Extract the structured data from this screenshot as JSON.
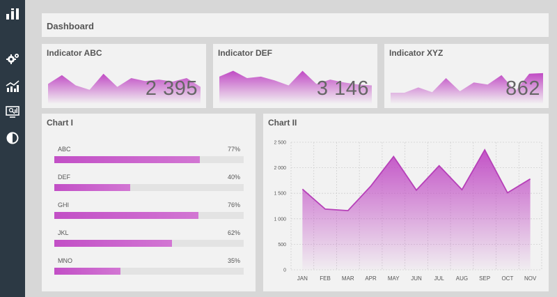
{
  "sidebar": {
    "icons": [
      "bar-chart-logo-icon",
      "gears-icon",
      "trend-chart-icon",
      "presentation-icon",
      "contrast-icon"
    ]
  },
  "header": {
    "title": "Dashboard"
  },
  "kpis": [
    {
      "title": "Indicator ABC",
      "value": "2 395",
      "spark": [
        0.3,
        0.6,
        0.25,
        0.1,
        0.65,
        0.2,
        0.5,
        0.4,
        0.45,
        0.38,
        0.5,
        0.2
      ]
    },
    {
      "title": "Indicator DEF",
      "value": "3 146",
      "spark": [
        0.55,
        0.75,
        0.5,
        0.55,
        0.42,
        0.25,
        0.75,
        0.3,
        0.45,
        0.35,
        0.28,
        0.25
      ]
    },
    {
      "title": "Indicator XYZ",
      "value": "862",
      "spark": [
        0.0,
        0.0,
        0.18,
        0.02,
        0.5,
        0.05,
        0.35,
        0.28,
        0.6,
        0.05,
        0.65,
        0.67
      ]
    }
  ],
  "chart1": {
    "title": "Chart I",
    "chart_data": {
      "type": "bar",
      "categories": [
        "ABC",
        "DEF",
        "GHI",
        "JKL",
        "MNO"
      ],
      "values": [
        77,
        40,
        76,
        62,
        35
      ],
      "labels": [
        "77%",
        "40%",
        "76%",
        "62%",
        "35%"
      ]
    }
  },
  "chart2": {
    "title": "Chart II",
    "chart_data": {
      "type": "area",
      "categories": [
        "JAN",
        "FEB",
        "MAR",
        "APR",
        "MAY",
        "JUN",
        "JUL",
        "AUG",
        "SEP",
        "OCT",
        "NOV"
      ],
      "values": [
        1580,
        1190,
        1160,
        1640,
        2220,
        1560,
        2040,
        1570,
        2350,
        1510,
        1780
      ],
      "ylim": [
        0,
        2500
      ],
      "yticks": [
        "0",
        "500",
        "1 000",
        "1 500",
        "2 000",
        "2 500"
      ],
      "grid": true
    }
  },
  "colors": {
    "accent": "#c04ac4",
    "sidebar": "#2c3944",
    "panel": "#f2f2f2",
    "background": "#d7d7d7"
  }
}
